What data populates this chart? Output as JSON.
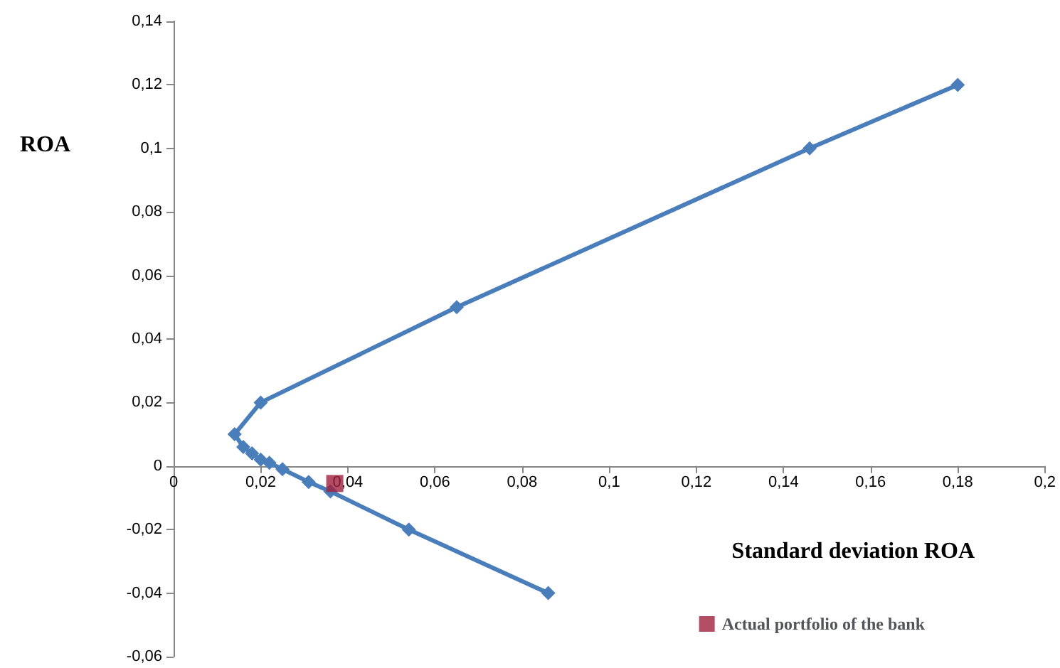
{
  "chart_data": {
    "type": "line",
    "xlabel": "Standard deviation ROA",
    "ylabel": "ROA",
    "xlim": [
      0,
      0.2
    ],
    "ylim": [
      -0.06,
      0.14
    ],
    "xticks": [
      {
        "value": 0,
        "label": "0"
      },
      {
        "value": 0.02,
        "label": "0,02"
      },
      {
        "value": 0.04,
        "label": "0,04"
      },
      {
        "value": 0.06,
        "label": "0,06"
      },
      {
        "value": 0.08,
        "label": "0,08"
      },
      {
        "value": 0.1,
        "label": "0,1"
      },
      {
        "value": 0.12,
        "label": "0,12"
      },
      {
        "value": 0.14,
        "label": "0,14"
      },
      {
        "value": 0.16,
        "label": "0,16"
      },
      {
        "value": 0.18,
        "label": "0,18"
      },
      {
        "value": 0.2,
        "label": "0,2"
      }
    ],
    "yticks": [
      {
        "value": -0.06,
        "label": "-0,06"
      },
      {
        "value": -0.04,
        "label": "-0,04"
      },
      {
        "value": -0.02,
        "label": "-0,02"
      },
      {
        "value": 0,
        "label": "0"
      },
      {
        "value": 0.02,
        "label": "0,02"
      },
      {
        "value": 0.04,
        "label": "0,04"
      },
      {
        "value": 0.06,
        "label": "0,06"
      },
      {
        "value": 0.08,
        "label": "0,08"
      },
      {
        "value": 0.1,
        "label": "0,1"
      },
      {
        "value": 0.12,
        "label": "0,12"
      },
      {
        "value": 0.14,
        "label": "0,14"
      }
    ],
    "series": [
      {
        "color": "#4a7ebb",
        "marker": "diamond",
        "x": [
          0.18,
          0.146,
          0.065,
          0.02,
          0.014,
          0.016,
          0.018,
          0.02,
          0.022,
          0.025,
          0.031,
          0.036,
          0.054,
          0.086
        ],
        "values": [
          0.12,
          0.1,
          0.05,
          0.02,
          0.01,
          0.006,
          0.004,
          0.002,
          0.001,
          -0.001,
          -0.005,
          -0.008,
          -0.02,
          -0.04
        ]
      },
      {
        "type": "scatter",
        "name": "Actual portfolio of the bank",
        "color": "#a0203c",
        "marker": "square",
        "x": [
          0.037
        ],
        "values": [
          -0.0055
        ]
      }
    ],
    "legend": "bottom right"
  }
}
